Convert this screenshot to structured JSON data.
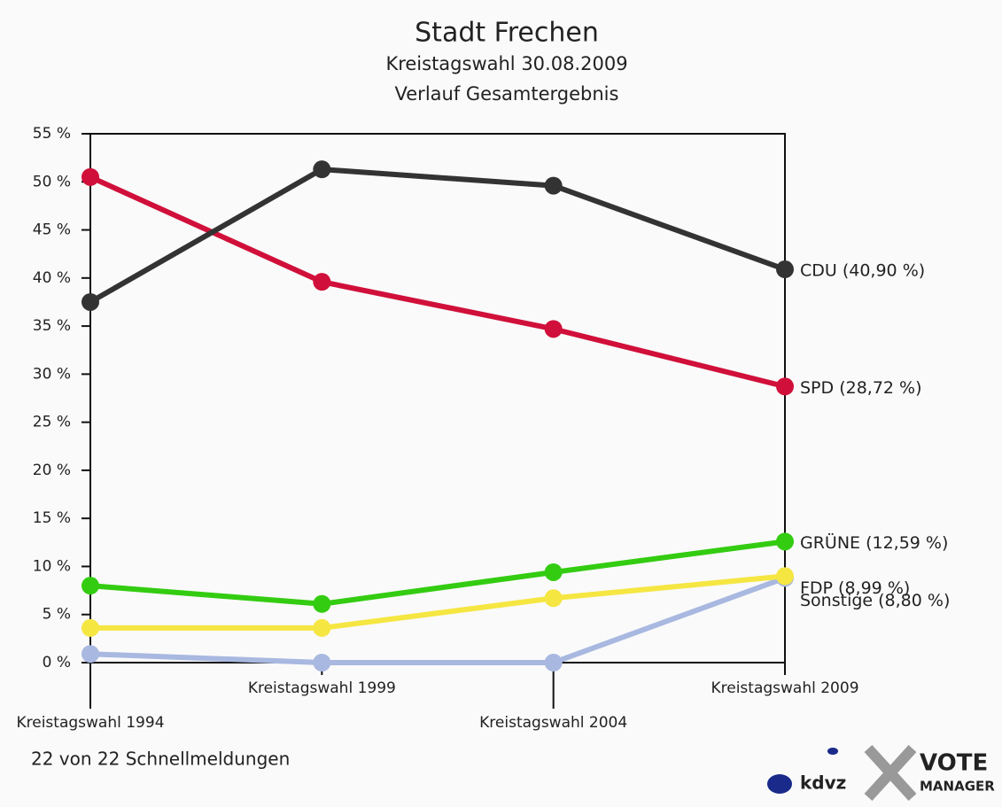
{
  "chart_data": {
    "type": "line",
    "title": "Stadt Frechen",
    "subtitle": [
      "Kreistagswahl 30.08.2009",
      "Verlauf Gesamtergebnis"
    ],
    "categories": [
      "Kreistagswahl 1994",
      "Kreistagswahl 1999",
      "Kreistagswahl 2004",
      "Kreistagswahl 2009"
    ],
    "ylim": [
      0,
      55
    ],
    "yticks": [
      {
        "value": 0,
        "label": "0 %"
      },
      {
        "value": 5,
        "label": "5 %"
      },
      {
        "value": 10,
        "label": "10 %"
      },
      {
        "value": 15,
        "label": "15 %"
      },
      {
        "value": 20,
        "label": "20 %"
      },
      {
        "value": 25,
        "label": "25 %"
      },
      {
        "value": 30,
        "label": "30 %"
      },
      {
        "value": 35,
        "label": "35 %"
      },
      {
        "value": 40,
        "label": "40 %"
      },
      {
        "value": 45,
        "label": "45 %"
      },
      {
        "value": 50,
        "label": "50 %"
      },
      {
        "value": 55,
        "label": "55 %"
      }
    ],
    "series": [
      {
        "name": "CDU",
        "color": "#333333",
        "values": [
          37.5,
          51.3,
          49.6,
          40.9
        ],
        "value_labels": [
          null,
          null,
          null,
          "CDU (40,90 %)"
        ]
      },
      {
        "name": "SPD",
        "color": "#d0103a",
        "values": [
          50.5,
          39.6,
          34.7,
          28.72
        ],
        "value_labels": [
          null,
          null,
          null,
          "SPD (28,72 %)"
        ]
      },
      {
        "name": "GRÜNE",
        "color": "#33cc11",
        "values": [
          8.0,
          6.1,
          9.4,
          12.59
        ],
        "value_labels": [
          null,
          null,
          null,
          "GRÜNE (12,59 %)"
        ]
      },
      {
        "name": "FDP",
        "color": "#f5e642",
        "values": [
          3.6,
          3.6,
          6.7,
          8.99
        ],
        "value_labels": [
          null,
          null,
          null,
          "FDP (8,99 %)"
        ]
      },
      {
        "name": "Sonstige",
        "color": "#a8b8e0",
        "values": [
          0.9,
          0,
          0,
          8.8
        ],
        "value_labels": [
          null,
          null,
          null,
          "Sonstige (8,80 %)"
        ]
      }
    ],
    "footer": "22 von 22 Schnellmeldungen",
    "logos": [
      "kdvz",
      "VOTE",
      "MANAGER"
    ]
  }
}
